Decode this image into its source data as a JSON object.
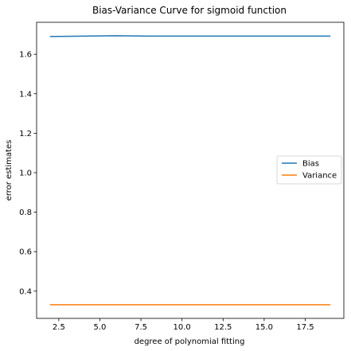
{
  "chart_data": {
    "type": "line",
    "title": "Bias-Variance Curve for sigmoid function",
    "xlabel": "degree of polynomial fitting",
    "ylabel": "error estimates",
    "xlim": [
      1.15,
      19.85
    ],
    "ylim": [
      0.262,
      1.762
    ],
    "xticks": [
      2.5,
      5.0,
      7.5,
      10.0,
      12.5,
      15.0,
      17.5
    ],
    "xtick_labels": [
      "2.5",
      "5.0",
      "7.5",
      "10.0",
      "12.5",
      "15.0",
      "17.5"
    ],
    "yticks": [
      0.4,
      0.6,
      0.8,
      1.0,
      1.2,
      1.4,
      1.6
    ],
    "ytick_labels": [
      "0.4",
      "0.6",
      "0.8",
      "1.0",
      "1.2",
      "1.4",
      "1.6"
    ],
    "grid": false,
    "legend_position": "right",
    "x": [
      2,
      3,
      4,
      5,
      6,
      7,
      8,
      9,
      10,
      11,
      12,
      13,
      14,
      15,
      16,
      17,
      18,
      19
    ],
    "series": [
      {
        "name": "Bias",
        "color": "#1f77b4",
        "values": [
          1.69,
          1.691,
          1.692,
          1.693,
          1.694,
          1.693,
          1.692,
          1.692,
          1.692,
          1.692,
          1.692,
          1.692,
          1.692,
          1.692,
          1.692,
          1.692,
          1.692,
          1.692
        ]
      },
      {
        "name": "Variance",
        "color": "#ff7f0e",
        "values": [
          0.331,
          0.331,
          0.331,
          0.331,
          0.331,
          0.331,
          0.331,
          0.331,
          0.331,
          0.331,
          0.331,
          0.331,
          0.331,
          0.331,
          0.331,
          0.331,
          0.331,
          0.331
        ]
      }
    ]
  }
}
